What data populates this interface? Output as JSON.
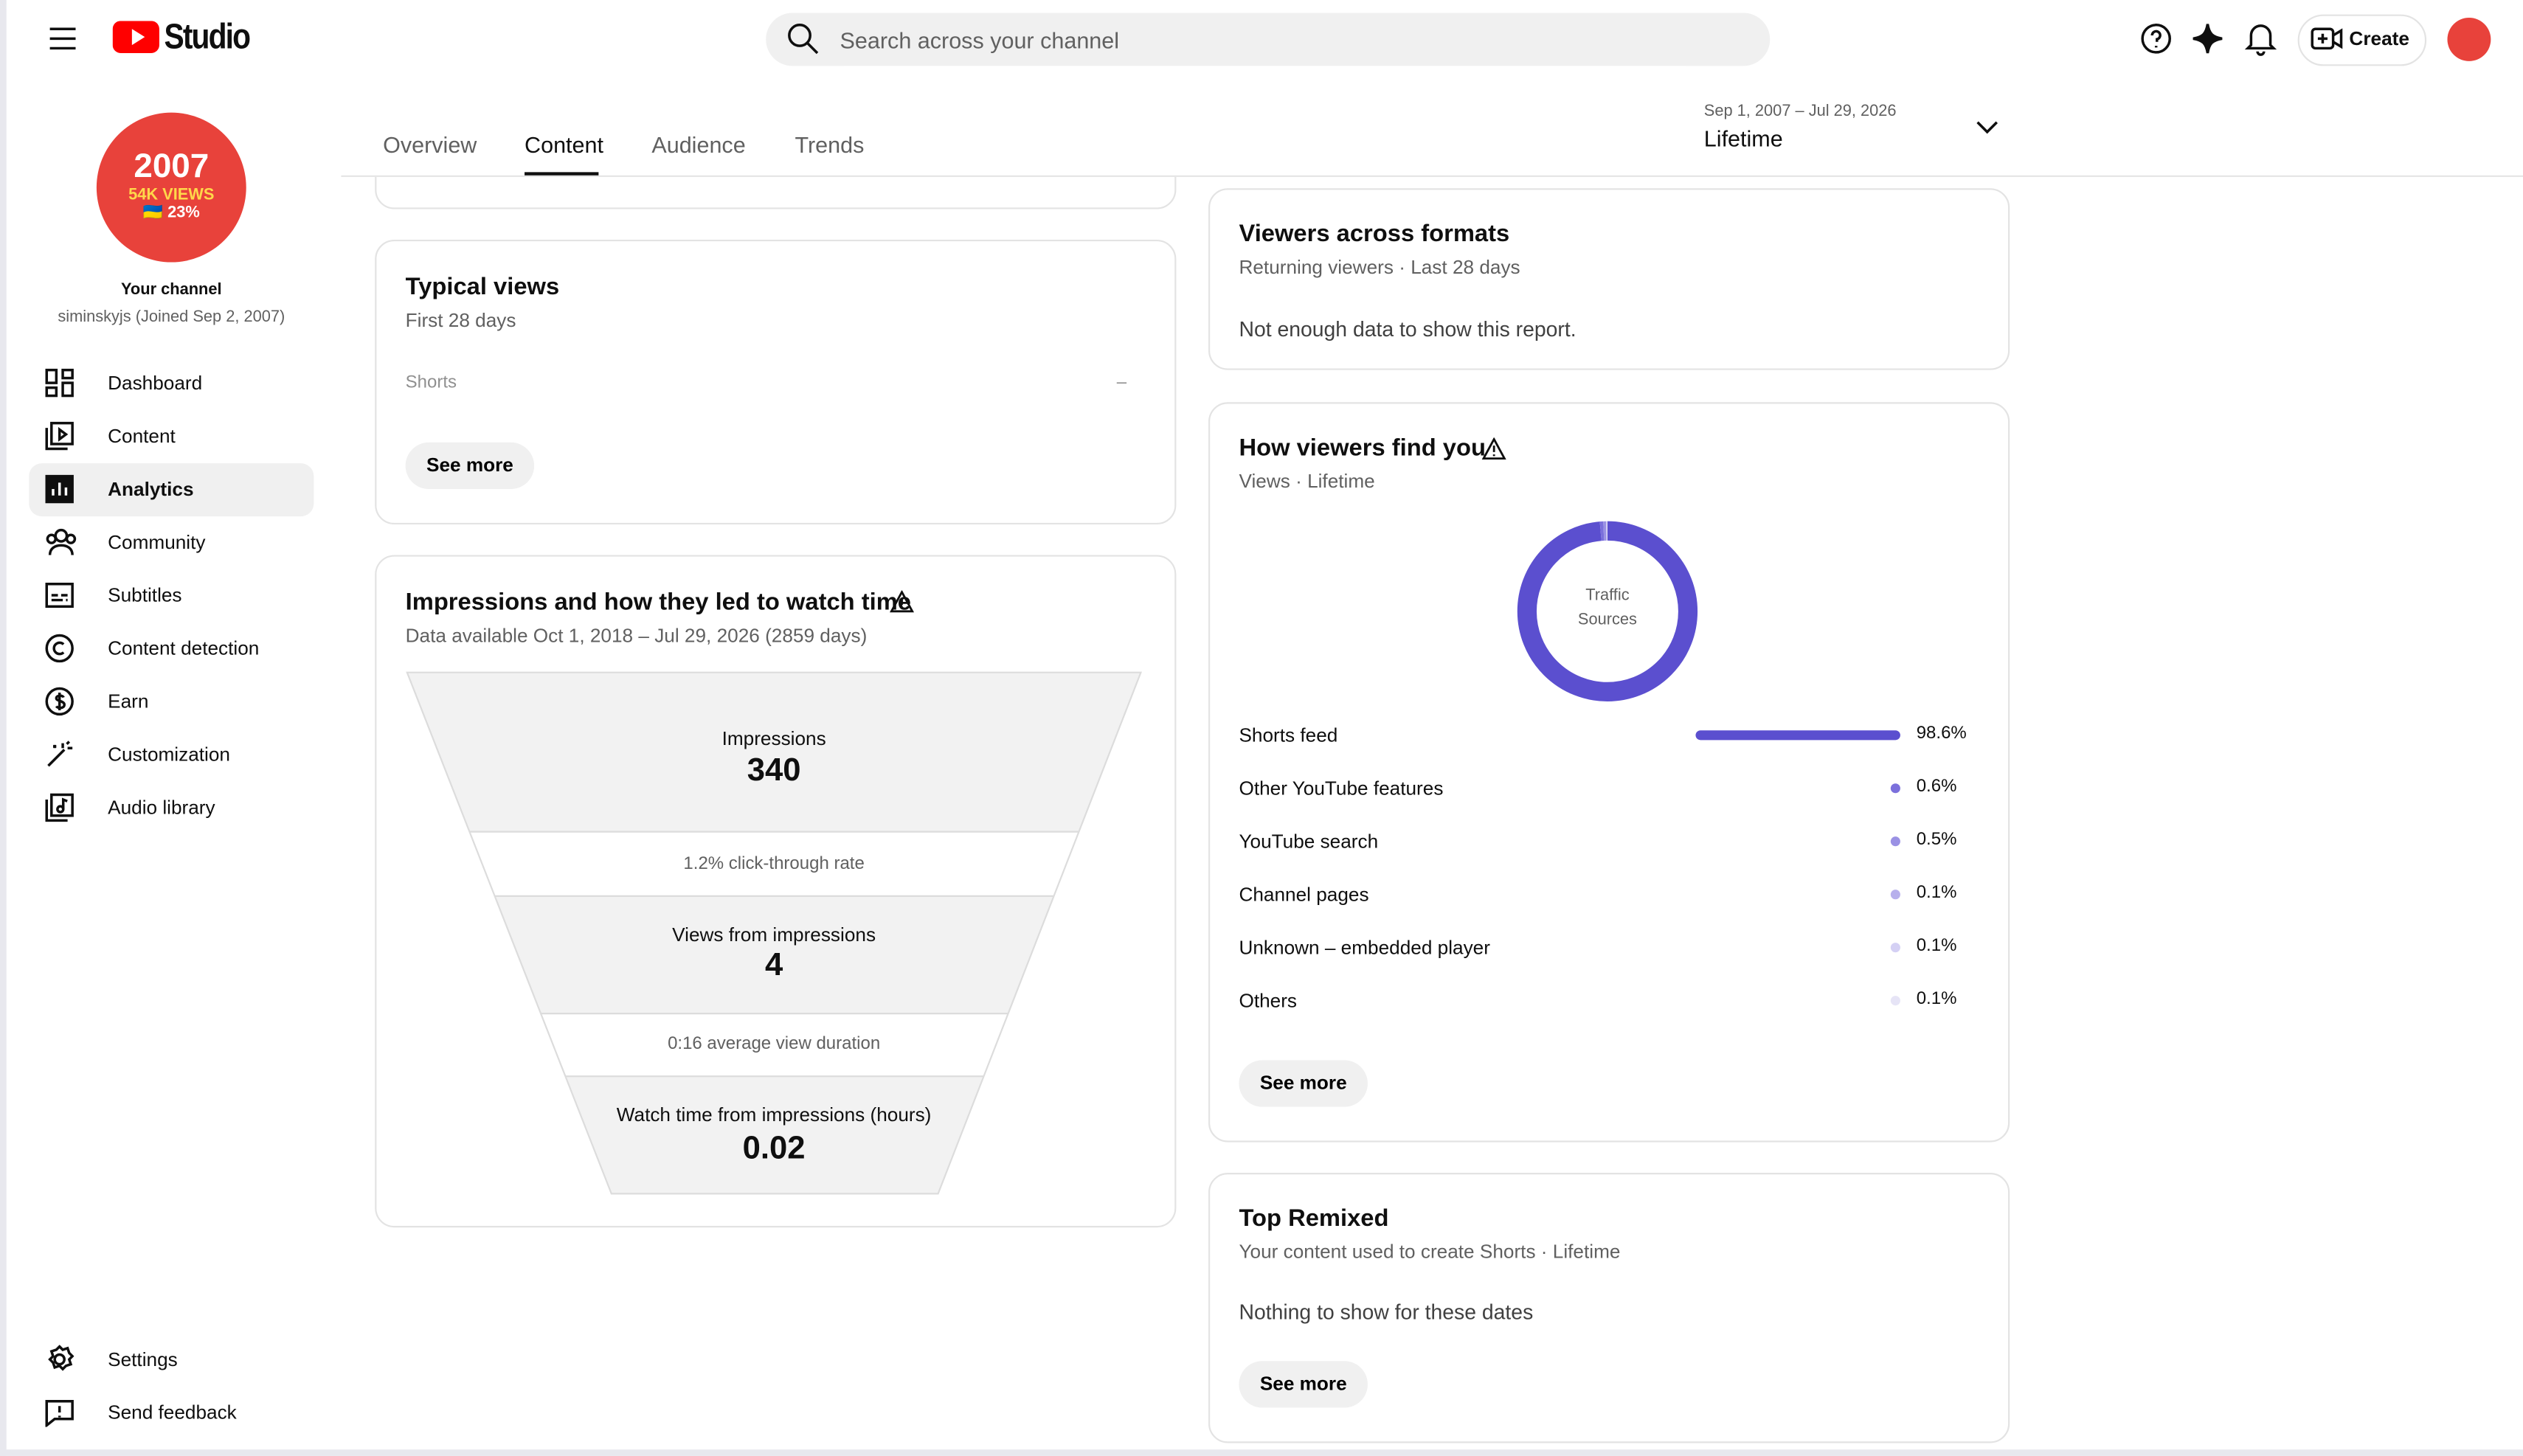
{
  "header": {
    "logo": "Studio",
    "search_placeholder": "Search across your channel",
    "create": "Create"
  },
  "channel": {
    "avatar_lines": [
      "2007",
      "54K VIEWS",
      "🇺🇦 23%"
    ],
    "title": "Your channel",
    "subtitle": "siminskyjs (Joined Sep 2, 2007)"
  },
  "nav": [
    "Dashboard",
    "Content",
    "Analytics",
    "Community",
    "Subtitles",
    "Content detection",
    "Earn",
    "Customization",
    "Audio library"
  ],
  "nav_bottom": [
    "Settings",
    "Send feedback"
  ],
  "tabs": [
    "Overview",
    "Content",
    "Audience",
    "Trends"
  ],
  "date_range": {
    "range": "Sep 1, 2007 – Jul 29, 2026",
    "label": "Lifetime"
  },
  "typical_views": {
    "title": "Typical views",
    "subtitle": "First 28 days",
    "row_label": "Shorts",
    "row_value": "–",
    "button": "See more"
  },
  "impressions": {
    "title": "Impressions and how they led to watch time",
    "subtitle": "Data available Oct 1, 2018 – Jul 29, 2026 (2859 days)",
    "impressions_label": "Impressions",
    "impressions_value": "340",
    "ctr": "1.2% click-through rate",
    "views_label": "Views from impressions",
    "views_value": "4",
    "duration": "0:16 average view duration",
    "watch_label": "Watch time from impressions (hours)",
    "watch_value": "0.02"
  },
  "viewers_formats": {
    "title": "Viewers across formats",
    "subtitle": "Returning viewers · Last 28 days",
    "message": "Not enough data to show this report."
  },
  "traffic": {
    "title": "How viewers find you",
    "subtitle": "Views · Lifetime",
    "center": [
      "Traffic",
      "Sources"
    ],
    "categories": [
      "Shorts feed",
      "Other YouTube features",
      "YouTube search",
      "Channel pages",
      "Unknown – embedded player",
      "Others"
    ],
    "values": [
      98.6,
      0.6,
      0.5,
      0.1,
      0.1,
      0.1
    ],
    "value_labels": [
      "98.6%",
      "0.6%",
      "0.5%",
      "0.1%",
      "0.1%",
      "0.1%"
    ],
    "colors": [
      "#5b4fcf",
      "#7b70dc",
      "#9a91e4",
      "#b7b0ec",
      "#d4d0f4",
      "#e6e4f6"
    ],
    "button": "See more"
  },
  "top_remixed": {
    "title": "Top Remixed",
    "subtitle": "Your content used to create Shorts · Lifetime",
    "message": "Nothing to show for these dates",
    "button": "See more"
  }
}
